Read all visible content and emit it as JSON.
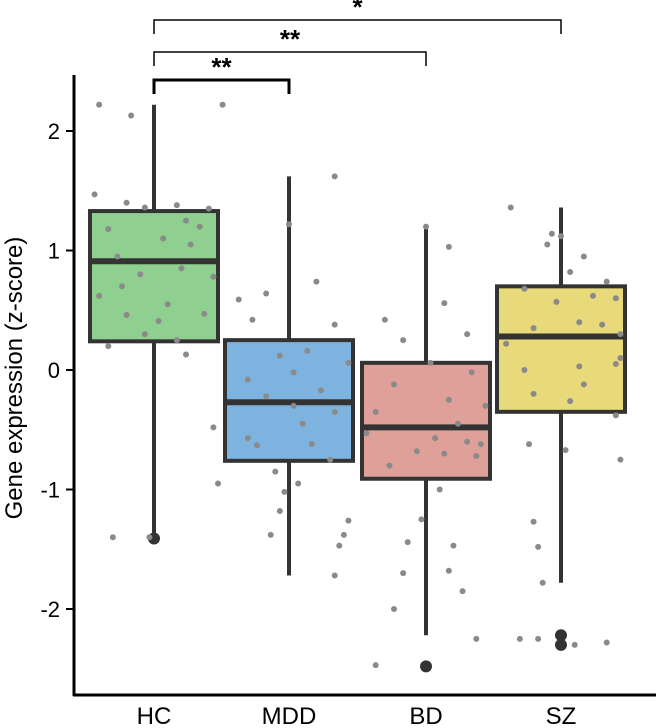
{
  "chart_data": {
    "type": "box",
    "title": "",
    "xlabel": "",
    "ylabel": "Gene expression (z-score)",
    "ylim": [
      -2.7,
      2.5
    ],
    "yticks": [
      2,
      1,
      0,
      -1,
      -2
    ],
    "ytick_labels": [
      "2",
      "1",
      "0",
      "-1",
      "-2"
    ],
    "grid": false,
    "categories": [
      "HC",
      "MDD",
      "BD",
      "SZ"
    ],
    "boxes": [
      {
        "name": "HC",
        "color": "#8fcf8f",
        "whisker_low": -1.4,
        "q1": 0.24,
        "median": 0.91,
        "q3": 1.33,
        "whisker_high": 2.22,
        "outliers": [
          -1.41
        ],
        "points": [
          [
            -0.12,
            2.22
          ],
          [
            -0.05,
            2.13
          ],
          [
            0.15,
            2.22
          ],
          [
            -0.13,
            1.47
          ],
          [
            -0.06,
            1.4
          ],
          [
            0.05,
            1.38
          ],
          [
            0.12,
            1.35
          ],
          [
            -0.02,
            1.36
          ],
          [
            0.07,
            1.25
          ],
          [
            0.1,
            1.2
          ],
          [
            -0.1,
            1.18
          ],
          [
            0.02,
            1.1
          ],
          [
            0.08,
            1.05
          ],
          [
            -0.08,
            0.95
          ],
          [
            0.06,
            0.85
          ],
          [
            -0.03,
            0.8
          ],
          [
            0.13,
            0.78
          ],
          [
            -0.07,
            0.7
          ],
          [
            -0.12,
            0.62
          ],
          [
            0.03,
            0.55
          ],
          [
            0.11,
            0.47
          ],
          [
            -0.06,
            0.46
          ],
          [
            0.01,
            0.41
          ],
          [
            -0.02,
            0.3
          ],
          [
            0.05,
            0.25
          ],
          [
            -0.1,
            0.2
          ],
          [
            0.07,
            0.13
          ],
          [
            0.13,
            -0.48
          ],
          [
            0.14,
            -0.95
          ],
          [
            -0.09,
            -1.4
          ],
          [
            -0.01,
            -1.4
          ]
        ]
      },
      {
        "name": "MDD",
        "color": "#7fb3df",
        "whisker_low": -1.72,
        "q1": -0.76,
        "median": -0.27,
        "q3": 0.25,
        "whisker_high": 1.62,
        "outliers": [],
        "points": [
          [
            0.1,
            1.62
          ],
          [
            0.0,
            1.22
          ],
          [
            0.06,
            0.74
          ],
          [
            -0.05,
            0.64
          ],
          [
            -0.11,
            0.59
          ],
          [
            -0.08,
            0.42
          ],
          [
            0.1,
            0.38
          ],
          [
            0.04,
            0.16
          ],
          [
            -0.02,
            0.12
          ],
          [
            0.13,
            0.06
          ],
          [
            0.01,
            -0.02
          ],
          [
            -0.09,
            -0.08
          ],
          [
            0.07,
            -0.17
          ],
          [
            -0.05,
            -0.22
          ],
          [
            0.01,
            -0.3
          ],
          [
            0.1,
            -0.35
          ],
          [
            0.03,
            -0.45
          ],
          [
            -0.09,
            -0.57
          ],
          [
            0.05,
            -0.62
          ],
          [
            -0.07,
            -0.63
          ],
          [
            0.09,
            -0.75
          ],
          [
            -0.03,
            -0.85
          ],
          [
            0.02,
            -0.95
          ],
          [
            -0.01,
            -1.02
          ],
          [
            -0.02,
            -1.18
          ],
          [
            0.13,
            -1.26
          ],
          [
            -0.04,
            -1.38
          ],
          [
            0.12,
            -1.38
          ],
          [
            0.11,
            -1.47
          ],
          [
            0.1,
            -1.72
          ]
        ]
      },
      {
        "name": "BD",
        "color": "#e0a09a",
        "whisker_low": -2.22,
        "q1": -0.91,
        "median": -0.48,
        "q3": 0.06,
        "whisker_high": 1.18,
        "outliers": [
          -2.48
        ],
        "points": [
          [
            0.0,
            1.2
          ],
          [
            0.05,
            1.03
          ],
          [
            0.04,
            0.56
          ],
          [
            -0.09,
            0.42
          ],
          [
            0.09,
            0.3
          ],
          [
            -0.05,
            0.25
          ],
          [
            0.01,
            0.06
          ],
          [
            0.1,
            -0.02
          ],
          [
            -0.07,
            -0.12
          ],
          [
            0.05,
            -0.25
          ],
          [
            0.13,
            -0.3
          ],
          [
            -0.11,
            -0.35
          ],
          [
            0.07,
            -0.45
          ],
          [
            -0.13,
            -0.53
          ],
          [
            0.02,
            -0.57
          ],
          [
            0.09,
            -0.6
          ],
          [
            0.12,
            -0.62
          ],
          [
            -0.02,
            -0.68
          ],
          [
            0.04,
            -0.7
          ],
          [
            0.11,
            -0.72
          ],
          [
            -0.08,
            -0.8
          ],
          [
            0.03,
            -1.0
          ],
          [
            -0.01,
            -1.25
          ],
          [
            -0.04,
            -1.44
          ],
          [
            0.06,
            -1.47
          ],
          [
            0.05,
            -1.68
          ],
          [
            -0.05,
            -1.7
          ],
          [
            0.08,
            -1.85
          ],
          [
            -0.07,
            -2.0
          ],
          [
            0.11,
            -2.25
          ],
          [
            -0.11,
            -2.47
          ]
        ]
      },
      {
        "name": "SZ",
        "color": "#e8d97a",
        "whisker_low": -1.78,
        "q1": -0.35,
        "median": 0.28,
        "q3": 0.7,
        "whisker_high": 1.36,
        "outliers": [
          -2.22,
          -2.3
        ],
        "points": [
          [
            -0.11,
            1.36
          ],
          [
            -0.02,
            1.14
          ],
          [
            0.0,
            1.12
          ],
          [
            -0.03,
            1.05
          ],
          [
            0.05,
            0.95
          ],
          [
            0.02,
            0.82
          ],
          [
            0.1,
            0.74
          ],
          [
            -0.08,
            0.68
          ],
          [
            0.07,
            0.62
          ],
          [
            0.12,
            0.6
          ],
          [
            -0.01,
            0.57
          ],
          [
            0.04,
            0.4
          ],
          [
            0.09,
            0.38
          ],
          [
            -0.06,
            0.35
          ],
          [
            0.13,
            0.3
          ],
          [
            -0.12,
            0.22
          ],
          [
            0.13,
            0.1
          ],
          [
            0.12,
            0.05
          ],
          [
            0.04,
            0.03
          ],
          [
            -0.08,
            0.0
          ],
          [
            0.05,
            -0.12
          ],
          [
            -0.06,
            -0.2
          ],
          [
            0.02,
            -0.26
          ],
          [
            0.12,
            -0.38
          ],
          [
            -0.07,
            -0.62
          ],
          [
            0.01,
            -0.67
          ],
          [
            0.13,
            -0.75
          ],
          [
            -0.06,
            -1.27
          ],
          [
            -0.05,
            -1.48
          ],
          [
            -0.04,
            -1.78
          ],
          [
            -0.09,
            -2.25
          ],
          [
            -0.05,
            -2.25
          ],
          [
            0.03,
            -2.3
          ],
          [
            0.1,
            -2.28
          ]
        ]
      }
    ],
    "comparisons": [
      {
        "group1": "HC",
        "group2": "MDD",
        "label": "**",
        "level": 0
      },
      {
        "group1": "HC",
        "group2": "BD",
        "label": "**",
        "level": 1
      },
      {
        "group1": "HC",
        "group2": "SZ",
        "label": "*",
        "level": 2
      }
    ],
    "colors": {
      "box_stroke": "#333333",
      "point": "#8a8a8a",
      "axis": "#000000"
    }
  }
}
